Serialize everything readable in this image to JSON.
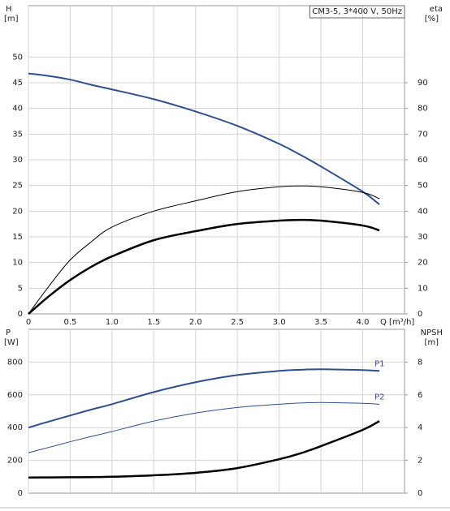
{
  "chart_data": [
    {
      "type": "line",
      "annotation": "CM3-5, 3*400 V, 50Hz",
      "y_label": "H",
      "y_unit": "[m]",
      "y2_label": "eta",
      "y2_unit": "[%]",
      "x_label": "Q [m³/h]",
      "x": [
        0,
        0.25,
        0.5,
        0.75,
        1,
        1.5,
        2,
        2.5,
        3,
        3.25,
        3.5,
        4,
        4.2
      ],
      "xlim": [
        0,
        4.5
      ],
      "xticks": [
        0,
        0.5,
        {
          "value": 1,
          "label": "1.0"
        },
        1.5,
        {
          "value": 2,
          "label": "2.0"
        },
        2.5,
        {
          "value": 3,
          "label": "3.0"
        },
        3.5,
        {
          "value": 4,
          "label": "4.0"
        }
      ],
      "ylim": [
        0,
        60
      ],
      "yticks": [
        0,
        5,
        10,
        15,
        20,
        25,
        30,
        35,
        40,
        45,
        50
      ],
      "y2lim": [
        0,
        120
      ],
      "y2ticks": [
        0,
        10,
        20,
        30,
        40,
        50,
        60,
        70,
        80,
        90
      ],
      "grid": true,
      "series": [
        {
          "color": "#2f4f8f",
          "line_width": 2,
          "values": [
            46.8,
            46.3,
            45.6,
            44.6,
            43.7,
            41.8,
            39.4,
            36.6,
            33.1,
            31.0,
            28.7,
            23.8,
            21.3
          ]
        },
        {
          "color": "#000000",
          "line_width": 1,
          "axis": "y2",
          "values": [
            0,
            11,
            21,
            28,
            33.8,
            40,
            44,
            47.6,
            49.5,
            49.8,
            49.5,
            47.3,
            44.8
          ]
        },
        {
          "color": "#000000",
          "line_width": 2.5,
          "axis": "y2",
          "values": [
            0,
            7,
            13.2,
            18.3,
            22.4,
            28.7,
            32.2,
            35,
            36.3,
            36.6,
            36.3,
            34.4,
            32.5
          ]
        }
      ]
    },
    {
      "type": "line",
      "y_label": "P",
      "y_unit": "[W]",
      "y2_label": "NPSH",
      "y2_unit": "[m]",
      "x": [
        0,
        0.25,
        0.5,
        0.75,
        1,
        1.5,
        2,
        2.5,
        3,
        3.25,
        3.5,
        4,
        4.2
      ],
      "xlim": [
        0,
        4.5
      ],
      "ylim": [
        0,
        1000
      ],
      "yticks": [
        0,
        200,
        400,
        600,
        800
      ],
      "y2lim": [
        0,
        10
      ],
      "y2ticks": [
        0,
        2,
        4,
        6,
        8
      ],
      "grid": true,
      "series": [
        {
          "name": "P1",
          "color": "#2f4f8f",
          "line_width": 2,
          "values": [
            400,
            438,
            474,
            510,
            543,
            617,
            677,
            721,
            746,
            753,
            756,
            751,
            746
          ]
        },
        {
          "name": "P2",
          "color": "#2f4f8f",
          "line_width": 1,
          "values": [
            247,
            280,
            314,
            346,
            376,
            440,
            489,
            523,
            543,
            550,
            553,
            548,
            543
          ]
        },
        {
          "color": "#000000",
          "line_width": 2.5,
          "axis": "y2",
          "values": [
            0.95,
            0.96,
            0.97,
            0.98,
            1.0,
            1.09,
            1.24,
            1.53,
            2.07,
            2.42,
            2.87,
            3.86,
            4.4
          ]
        }
      ]
    }
  ]
}
